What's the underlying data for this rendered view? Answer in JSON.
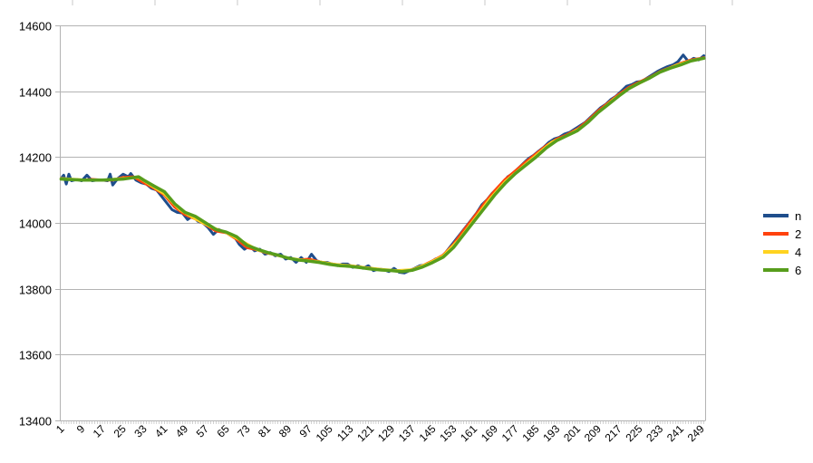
{
  "chart_data": {
    "type": "line",
    "xlabel": "",
    "ylabel": "",
    "ylim": [
      13400,
      14600
    ],
    "yticks": [
      13400,
      13600,
      13800,
      14000,
      14200,
      14400,
      14600
    ],
    "x_range": [
      1,
      250
    ],
    "xtick_labels": [
      "1",
      "9",
      "17",
      "25",
      "33",
      "41",
      "49",
      "57",
      "65",
      "73",
      "81",
      "89",
      "97",
      "105",
      "113",
      "121",
      "129",
      "137",
      "145",
      "153",
      "161",
      "169",
      "177",
      "185",
      "193",
      "201",
      "209",
      "217",
      "225",
      "233",
      "241",
      "249"
    ],
    "grid": "horizontal",
    "legend_position": "right",
    "series": [
      {
        "name": "n",
        "color": "#1f4e8c",
        "width": 3,
        "points": [
          [
            1,
            14135
          ],
          [
            2,
            14145
          ],
          [
            3,
            14118
          ],
          [
            4,
            14148
          ],
          [
            5,
            14128
          ],
          [
            7,
            14132
          ],
          [
            9,
            14128
          ],
          [
            11,
            14145
          ],
          [
            13,
            14128
          ],
          [
            15,
            14130
          ],
          [
            17,
            14130
          ],
          [
            19,
            14128
          ],
          [
            20,
            14148
          ],
          [
            21,
            14115
          ],
          [
            23,
            14135
          ],
          [
            25,
            14148
          ],
          [
            27,
            14140
          ],
          [
            28,
            14150
          ],
          [
            30,
            14130
          ],
          [
            32,
            14122
          ],
          [
            34,
            14118
          ],
          [
            36,
            14105
          ],
          [
            38,
            14100
          ],
          [
            40,
            14080
          ],
          [
            42,
            14060
          ],
          [
            44,
            14040
          ],
          [
            46,
            14032
          ],
          [
            48,
            14030
          ],
          [
            50,
            14010
          ],
          [
            52,
            14022
          ],
          [
            54,
            14005
          ],
          [
            56,
            14000
          ],
          [
            58,
            13985
          ],
          [
            60,
            13965
          ],
          [
            62,
            13980
          ],
          [
            64,
            13972
          ],
          [
            66,
            13968
          ],
          [
            68,
            13960
          ],
          [
            70,
            13935
          ],
          [
            72,
            13920
          ],
          [
            74,
            13930
          ],
          [
            76,
            13915
          ],
          [
            78,
            13920
          ],
          [
            80,
            13905
          ],
          [
            82,
            13910
          ],
          [
            84,
            13900
          ],
          [
            86,
            13905
          ],
          [
            88,
            13890
          ],
          [
            90,
            13895
          ],
          [
            92,
            13880
          ],
          [
            94,
            13895
          ],
          [
            96,
            13880
          ],
          [
            98,
            13905
          ],
          [
            100,
            13885
          ],
          [
            102,
            13880
          ],
          [
            104,
            13880
          ],
          [
            106,
            13875
          ],
          [
            108,
            13870
          ],
          [
            110,
            13875
          ],
          [
            112,
            13875
          ],
          [
            114,
            13865
          ],
          [
            116,
            13870
          ],
          [
            118,
            13862
          ],
          [
            120,
            13870
          ],
          [
            122,
            13855
          ],
          [
            124,
            13860
          ],
          [
            126,
            13858
          ],
          [
            128,
            13852
          ],
          [
            130,
            13862
          ],
          [
            132,
            13850
          ],
          [
            134,
            13848
          ],
          [
            136,
            13855
          ],
          [
            138,
            13862
          ],
          [
            140,
            13870
          ],
          [
            142,
            13872
          ],
          [
            144,
            13880
          ],
          [
            146,
            13890
          ],
          [
            148,
            13895
          ],
          [
            150,
            13910
          ],
          [
            152,
            13930
          ],
          [
            154,
            13950
          ],
          [
            156,
            13970
          ],
          [
            158,
            13990
          ],
          [
            160,
            14010
          ],
          [
            162,
            14030
          ],
          [
            164,
            14055
          ],
          [
            166,
            14070
          ],
          [
            168,
            14090
          ],
          [
            170,
            14105
          ],
          [
            172,
            14120
          ],
          [
            174,
            14140
          ],
          [
            176,
            14150
          ],
          [
            178,
            14165
          ],
          [
            180,
            14180
          ],
          [
            182,
            14195
          ],
          [
            184,
            14205
          ],
          [
            186,
            14218
          ],
          [
            188,
            14230
          ],
          [
            190,
            14245
          ],
          [
            192,
            14255
          ],
          [
            194,
            14260
          ],
          [
            196,
            14270
          ],
          [
            198,
            14275
          ],
          [
            200,
            14285
          ],
          [
            202,
            14295
          ],
          [
            204,
            14305
          ],
          [
            206,
            14320
          ],
          [
            208,
            14335
          ],
          [
            210,
            14350
          ],
          [
            212,
            14360
          ],
          [
            214,
            14375
          ],
          [
            216,
            14385
          ],
          [
            218,
            14400
          ],
          [
            220,
            14415
          ],
          [
            222,
            14420
          ],
          [
            224,
            14428
          ],
          [
            226,
            14430
          ],
          [
            228,
            14440
          ],
          [
            230,
            14450
          ],
          [
            232,
            14460
          ],
          [
            234,
            14468
          ],
          [
            236,
            14475
          ],
          [
            238,
            14480
          ],
          [
            240,
            14490
          ],
          [
            242,
            14510
          ],
          [
            244,
            14490
          ],
          [
            246,
            14500
          ],
          [
            248,
            14495
          ],
          [
            250,
            14508
          ]
        ]
      },
      {
        "name": "2",
        "color": "#ff420e",
        "width": 3,
        "points": [
          [
            1,
            14135
          ],
          [
            5,
            14132
          ],
          [
            9,
            14130
          ],
          [
            13,
            14132
          ],
          [
            17,
            14130
          ],
          [
            21,
            14130
          ],
          [
            25,
            14138
          ],
          [
            29,
            14140
          ],
          [
            33,
            14122
          ],
          [
            37,
            14105
          ],
          [
            41,
            14085
          ],
          [
            45,
            14048
          ],
          [
            49,
            14025
          ],
          [
            53,
            14012
          ],
          [
            57,
            13995
          ],
          [
            61,
            13975
          ],
          [
            65,
            13970
          ],
          [
            69,
            13950
          ],
          [
            73,
            13925
          ],
          [
            77,
            13918
          ],
          [
            81,
            13908
          ],
          [
            85,
            13902
          ],
          [
            89,
            13893
          ],
          [
            93,
            13888
          ],
          [
            97,
            13890
          ],
          [
            101,
            13882
          ],
          [
            105,
            13876
          ],
          [
            109,
            13872
          ],
          [
            113,
            13870
          ],
          [
            117,
            13866
          ],
          [
            121,
            13862
          ],
          [
            125,
            13858
          ],
          [
            129,
            13855
          ],
          [
            133,
            13852
          ],
          [
            137,
            13858
          ],
          [
            141,
            13870
          ],
          [
            145,
            13885
          ],
          [
            149,
            13902
          ],
          [
            153,
            13935
          ],
          [
            157,
            13978
          ],
          [
            161,
            14018
          ],
          [
            165,
            14060
          ],
          [
            169,
            14098
          ],
          [
            173,
            14132
          ],
          [
            177,
            14158
          ],
          [
            181,
            14185
          ],
          [
            185,
            14210
          ],
          [
            189,
            14235
          ],
          [
            193,
            14255
          ],
          [
            197,
            14268
          ],
          [
            201,
            14285
          ],
          [
            205,
            14310
          ],
          [
            209,
            14340
          ],
          [
            213,
            14365
          ],
          [
            217,
            14390
          ],
          [
            221,
            14412
          ],
          [
            225,
            14428
          ],
          [
            229,
            14442
          ],
          [
            233,
            14460
          ],
          [
            237,
            14472
          ],
          [
            241,
            14485
          ],
          [
            245,
            14495
          ],
          [
            249,
            14500
          ],
          [
            250,
            14502
          ]
        ]
      },
      {
        "name": "4",
        "color": "#ffd320",
        "width": 3,
        "points": [
          [
            1,
            14135
          ],
          [
            9,
            14131
          ],
          [
            17,
            14130
          ],
          [
            25,
            14135
          ],
          [
            31,
            14138
          ],
          [
            35,
            14118
          ],
          [
            41,
            14088
          ],
          [
            47,
            14040
          ],
          [
            53,
            14012
          ],
          [
            59,
            13988
          ],
          [
            65,
            13970
          ],
          [
            71,
            13945
          ],
          [
            77,
            13918
          ],
          [
            83,
            13905
          ],
          [
            89,
            13893
          ],
          [
            95,
            13887
          ],
          [
            101,
            13882
          ],
          [
            107,
            13874
          ],
          [
            113,
            13870
          ],
          [
            119,
            13864
          ],
          [
            125,
            13859
          ],
          [
            131,
            13855
          ],
          [
            137,
            13858
          ],
          [
            143,
            13876
          ],
          [
            149,
            13900
          ],
          [
            155,
            13948
          ],
          [
            161,
            14010
          ],
          [
            167,
            14072
          ],
          [
            173,
            14125
          ],
          [
            179,
            14165
          ],
          [
            185,
            14205
          ],
          [
            191,
            14245
          ],
          [
            197,
            14265
          ],
          [
            203,
            14292
          ],
          [
            209,
            14335
          ],
          [
            215,
            14375
          ],
          [
            221,
            14408
          ],
          [
            227,
            14432
          ],
          [
            233,
            14458
          ],
          [
            239,
            14478
          ],
          [
            245,
            14493
          ],
          [
            250,
            14500
          ]
        ]
      },
      {
        "name": "6",
        "color": "#579d1c",
        "width": 3.5,
        "points": [
          [
            1,
            14133
          ],
          [
            9,
            14130
          ],
          [
            17,
            14130
          ],
          [
            25,
            14133
          ],
          [
            31,
            14140
          ],
          [
            33,
            14130
          ],
          [
            37,
            14112
          ],
          [
            41,
            14095
          ],
          [
            45,
            14058
          ],
          [
            49,
            14032
          ],
          [
            53,
            14020
          ],
          [
            57,
            14000
          ],
          [
            61,
            13980
          ],
          [
            65,
            13972
          ],
          [
            69,
            13958
          ],
          [
            73,
            13932
          ],
          [
            77,
            13920
          ],
          [
            81,
            13910
          ],
          [
            85,
            13902
          ],
          [
            89,
            13893
          ],
          [
            93,
            13887
          ],
          [
            97,
            13884
          ],
          [
            101,
            13880
          ],
          [
            105,
            13874
          ],
          [
            109,
            13870
          ],
          [
            113,
            13868
          ],
          [
            117,
            13864
          ],
          [
            121,
            13860
          ],
          [
            125,
            13857
          ],
          [
            129,
            13855
          ],
          [
            133,
            13852
          ],
          [
            137,
            13856
          ],
          [
            141,
            13866
          ],
          [
            145,
            13880
          ],
          [
            149,
            13896
          ],
          [
            153,
            13925
          ],
          [
            157,
            13965
          ],
          [
            161,
            14005
          ],
          [
            165,
            14045
          ],
          [
            169,
            14085
          ],
          [
            173,
            14120
          ],
          [
            177,
            14150
          ],
          [
            181,
            14175
          ],
          [
            185,
            14200
          ],
          [
            189,
            14228
          ],
          [
            193,
            14250
          ],
          [
            197,
            14265
          ],
          [
            201,
            14280
          ],
          [
            205,
            14305
          ],
          [
            209,
            14335
          ],
          [
            213,
            14360
          ],
          [
            217,
            14385
          ],
          [
            221,
            14408
          ],
          [
            225,
            14425
          ],
          [
            229,
            14440
          ],
          [
            233,
            14458
          ],
          [
            237,
            14470
          ],
          [
            241,
            14480
          ],
          [
            245,
            14492
          ],
          [
            250,
            14500
          ]
        ]
      }
    ]
  }
}
